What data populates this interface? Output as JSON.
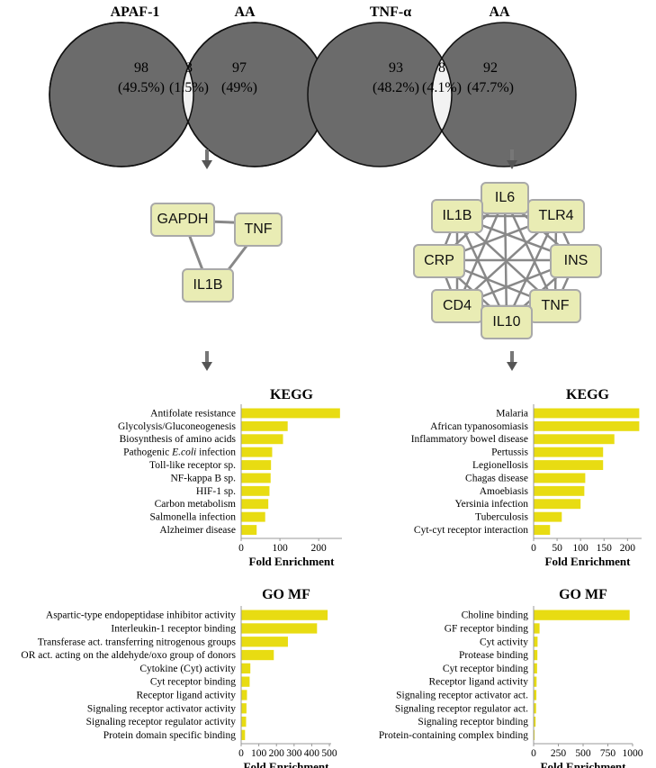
{
  "venn_left": {
    "label_a": "APAF-1",
    "label_b": "AA",
    "left_count": "98",
    "left_pct": "(49.5%)",
    "mid_count": "3",
    "mid_pct": "(1.5%)",
    "right_count": "97",
    "right_pct": "(49%)"
  },
  "venn_right": {
    "label_a": "TNF-α",
    "label_b": "AA",
    "left_count": "93",
    "left_pct": "(48.2%)",
    "mid_count": "8",
    "mid_pct": "(4.1%)",
    "right_count": "92",
    "right_pct": "(47.7%)"
  },
  "network_left": {
    "nodes": [
      "GAPDH",
      "TNF",
      "IL1B"
    ]
  },
  "network_right": {
    "nodes": [
      "IL6",
      "IL1B",
      "TLR4",
      "CRP",
      "INS",
      "CD4",
      "TNF",
      "IL10"
    ]
  },
  "colors": {
    "venn_fill": "#6b6b6b",
    "venn_overlap": "#f2f2f2",
    "bar": "#e8dc12",
    "node_fill": "#e9ecb4",
    "node_border": "#a9a9a9"
  },
  "chart_data": [
    {
      "type": "bar",
      "orientation": "horizontal",
      "title": "KEGG",
      "xlabel": "Fold Enrichment",
      "categories": [
        "Antifolate resistance",
        "Glycolysis/Gluconeogenesis",
        "Biosynthesis of amino acids",
        "Pathogenic E.coli infection",
        "Toll-like receptor sp.",
        "NF-kappa B sp.",
        "HIF-1 sp.",
        "Carbon metabolism",
        "Salmonella infection",
        "Alzheimer disease"
      ],
      "values": [
        255,
        120,
        108,
        80,
        77,
        76,
        73,
        70,
        62,
        40
      ],
      "xlim": [
        0,
        260
      ],
      "xticks": [
        0,
        100,
        200
      ]
    },
    {
      "type": "bar",
      "orientation": "horizontal",
      "title": "KEGG",
      "xlabel": "Fold Enrichment",
      "categories": [
        "Malaria",
        "African typanosomiasis",
        "Inflammatory bowel disease",
        "Pertussis",
        "Legionellosis",
        "Chagas disease",
        "Amoebiasis",
        "Yersinia infection",
        "Tuberculosis",
        "Cyt-cyt receptor interaction"
      ],
      "values": [
        225,
        225,
        172,
        148,
        148,
        110,
        108,
        100,
        60,
        35
      ],
      "xlim": [
        0,
        230
      ],
      "xticks": [
        0,
        50,
        100,
        150,
        200
      ]
    },
    {
      "type": "bar",
      "orientation": "horizontal",
      "title": "GO MF",
      "xlabel": "Fold Enrichment",
      "categories": [
        "Aspartic-type endopeptidase inhibitor activity",
        "Interleukin-1 receptor binding",
        "Transferase act. transferring nitrogenous groups",
        "OR act. acting on the aldehyde/oxo group of donors",
        "Cytokine (Cyt) activity",
        "Cyt receptor binding",
        "Receptor ligand activity",
        "Signaling receptor activator activity",
        "Signaling receptor regulator activity",
        "Protein domain specific binding"
      ],
      "values": [
        490,
        430,
        265,
        185,
        52,
        48,
        33,
        30,
        28,
        22
      ],
      "xlim": [
        0,
        510
      ],
      "xticks": [
        0,
        100,
        200,
        300,
        400,
        500
      ]
    },
    {
      "type": "bar",
      "orientation": "horizontal",
      "title": "GO MF",
      "xlabel": "Fold Enrichment",
      "categories": [
        "Choline binding",
        "GF receptor binding",
        "Cyt activity",
        "Protease binding",
        "Cyt receptor binding",
        "Receptor ligand activity",
        "Signaling receptor activator act.",
        "Signaling receptor regulator act.",
        "Signaling receptor binding",
        "Protein-containing complex binding"
      ],
      "values": [
        970,
        60,
        40,
        38,
        35,
        30,
        28,
        25,
        20,
        10
      ],
      "xlim": [
        0,
        1000
      ],
      "xticks": [
        0,
        250,
        500,
        750,
        1000
      ]
    }
  ]
}
